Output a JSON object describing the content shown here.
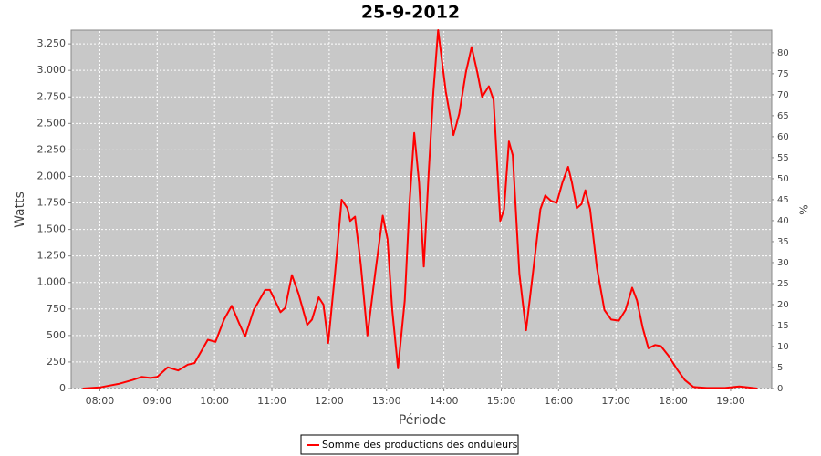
{
  "chart_data": {
    "type": "line",
    "title": "25-9-2012",
    "x_label": "Période",
    "y_label": "Watts",
    "y2_label": "%",
    "x": [
      "07:42",
      "08:00",
      "08:20",
      "08:34",
      "08:44",
      "08:53",
      "09:00",
      "09:11",
      "09:22",
      "09:32",
      "09:39",
      "09:53",
      "10:01",
      "10:10",
      "10:18",
      "10:26",
      "10:32",
      "10:41",
      "10:53",
      "10:58",
      "11:09",
      "11:14",
      "11:21",
      "11:28",
      "11:37",
      "11:42",
      "11:49",
      "11:54",
      "11:59",
      "12:06",
      "12:13",
      "12:19",
      "12:22",
      "12:27",
      "12:33",
      "12:40",
      "12:48",
      "12:56",
      "13:01",
      "13:06",
      "13:12",
      "13:19",
      "13:24",
      "13:29",
      "13:34",
      "13:39",
      "13:44",
      "13:49",
      "13:54",
      "14:02",
      "14:10",
      "14:16",
      "14:23",
      "14:29",
      "14:35",
      "14:40",
      "14:47",
      "14:52",
      "14:59",
      "15:03",
      "15:08",
      "15:12",
      "15:19",
      "15:26",
      "15:33",
      "15:41",
      "15:46",
      "15:52",
      "15:58",
      "16:04",
      "16:10",
      "16:14",
      "16:19",
      "16:24",
      "16:28",
      "16:33",
      "16:40",
      "16:48",
      "16:55",
      "17:03",
      "17:10",
      "17:17",
      "17:22",
      "17:28",
      "17:34",
      "17:41",
      "17:47",
      "17:55",
      "18:04",
      "18:12",
      "18:21",
      "18:35",
      "18:54",
      "19:09",
      "19:18",
      "19:28"
    ],
    "series": [
      {
        "name": "Somme des productions des onduleurs",
        "color": "#ff0000",
        "values": [
          0,
          10,
          45,
          80,
          110,
          100,
          110,
          200,
          170,
          225,
          240,
          460,
          440,
          650,
          780,
          610,
          490,
          740,
          930,
          930,
          720,
          760,
          1070,
          890,
          600,
          650,
          860,
          790,
          430,
          1080,
          1780,
          1700,
          1580,
          1620,
          1170,
          500,
          1080,
          1630,
          1410,
          740,
          190,
          830,
          1740,
          2410,
          1940,
          1150,
          2030,
          2800,
          3380,
          2800,
          2390,
          2590,
          2980,
          3220,
          2980,
          2750,
          2850,
          2720,
          1580,
          1690,
          2330,
          2200,
          1080,
          550,
          1080,
          1690,
          1820,
          1770,
          1750,
          1940,
          2090,
          1940,
          1700,
          1740,
          1870,
          1690,
          1140,
          740,
          650,
          640,
          740,
          950,
          830,
          570,
          380,
          410,
          400,
          310,
          180,
          80,
          15,
          5,
          5,
          20,
          10,
          0
        ]
      }
    ],
    "xlim": [
      "07:30",
      "19:43"
    ],
    "xticks": [
      "08:00",
      "09:00",
      "10:00",
      "11:00",
      "12:00",
      "13:00",
      "14:00",
      "15:00",
      "16:00",
      "17:00",
      "18:00",
      "19:00"
    ],
    "ylim": [
      0,
      3380
    ],
    "yticks": [
      0,
      250,
      500,
      750,
      {
        "value": 1000,
        "label": "1.000"
      },
      {
        "value": 1250,
        "label": "1.250"
      },
      {
        "value": 1500,
        "label": "1.500"
      },
      {
        "value": 1750,
        "label": "1.750"
      },
      {
        "value": 2000,
        "label": "2.000"
      },
      {
        "value": 2250,
        "label": "2.250"
      },
      {
        "value": 2500,
        "label": "2.500"
      },
      {
        "value": 2750,
        "label": "2.750"
      },
      {
        "value": 3000,
        "label": "3.000"
      },
      {
        "value": 3250,
        "label": "3.250"
      }
    ],
    "y2lim": [
      0,
      85.4
    ],
    "y2ticks": [
      0,
      5,
      10,
      15,
      20,
      25,
      30,
      35,
      40,
      45,
      50,
      55,
      60,
      65,
      70,
      75,
      80
    ],
    "grid": true
  }
}
